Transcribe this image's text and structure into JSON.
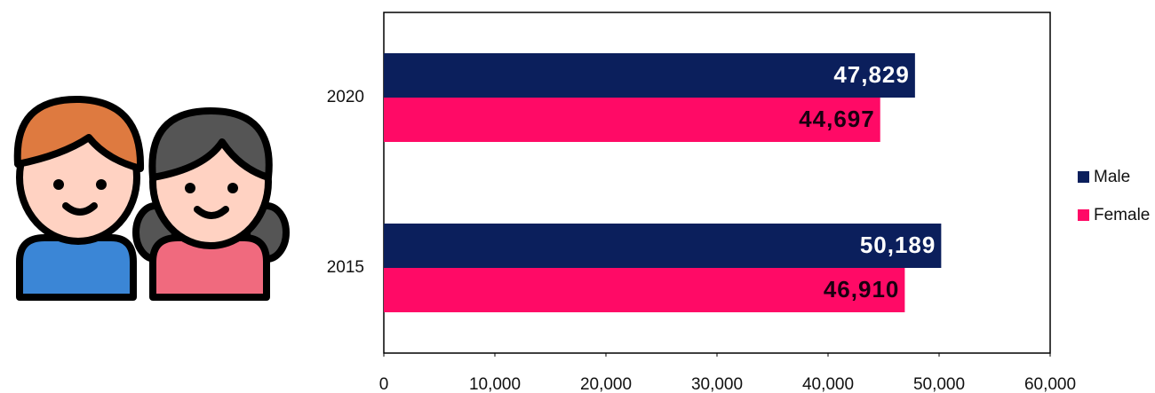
{
  "chart_data": {
    "type": "bar",
    "orientation": "horizontal",
    "categories": [
      "2020",
      "2015"
    ],
    "series": [
      {
        "name": "Male",
        "color": "#0b1f5c",
        "label_color": "#ffffff",
        "values": [
          47829,
          50189
        ],
        "value_labels": [
          "47,829",
          "50,189"
        ]
      },
      {
        "name": "Female",
        "color": "#ff0a66",
        "label_color": "#1a0010",
        "values": [
          44697,
          46910
        ],
        "value_labels": [
          "44,697",
          "46,910"
        ]
      }
    ],
    "xlim": [
      0,
      60000
    ],
    "xticks": [
      0,
      {
        "value": 10000,
        "label": "10,000"
      },
      {
        "value": 20000,
        "label": "20,000"
      },
      {
        "value": 30000,
        "label": "30,000"
      },
      {
        "value": 40000,
        "label": "40,000"
      },
      {
        "value": 50000,
        "label": "50,000"
      },
      {
        "value": 60000,
        "label": "60,000"
      }
    ],
    "legend": "right"
  }
}
